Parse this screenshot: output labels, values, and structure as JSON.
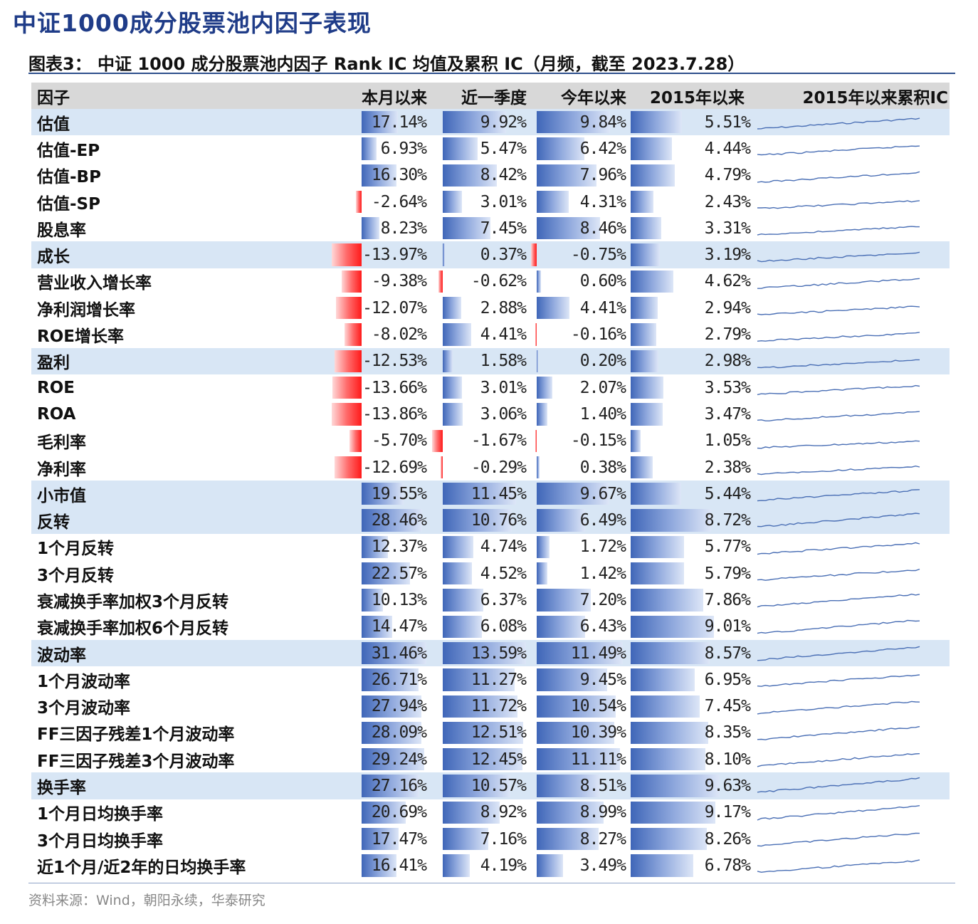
{
  "page_title": "中证1000成分股票池内因子表现",
  "figure_title": "图表3：  中证 1000 成分股票池内因子 Rank IC 均值及累积 IC（月频，截至 2023.7.28）",
  "source": "资料来源：Wind，朝阳永续，华泰研究",
  "colors": {
    "positive_bar": "#3f66b8",
    "negative_bar": "#ff1a1a",
    "group_row_bg": "#d8e6f5",
    "header_bg": "#d8d8d8",
    "sparkline": "#4a6fb5"
  },
  "headers": [
    "因子",
    "本月以来",
    "近一季度",
    "今年以来",
    "2015年以来",
    "2015年以来累积IC"
  ],
  "rows": [
    {
      "name": "估值",
      "group": true,
      "values": [
        "17.14%",
        "9.92%",
        "9.84%",
        "5.51%"
      ],
      "nums": [
        17.14,
        9.92,
        9.84,
        5.51
      ]
    },
    {
      "name": "估值-EP",
      "group": false,
      "values": [
        "6.93%",
        "5.47%",
        "6.42%",
        "4.44%"
      ],
      "nums": [
        6.93,
        5.47,
        6.42,
        4.44
      ]
    },
    {
      "name": "估值-BP",
      "group": false,
      "values": [
        "16.30%",
        "8.42%",
        "7.96%",
        "4.79%"
      ],
      "nums": [
        16.3,
        8.42,
        7.96,
        4.79
      ]
    },
    {
      "name": "估值-SP",
      "group": false,
      "values": [
        "-2.64%",
        "3.01%",
        "4.31%",
        "2.43%"
      ],
      "nums": [
        -2.64,
        3.01,
        4.31,
        2.43
      ]
    },
    {
      "name": "股息率",
      "group": false,
      "values": [
        "8.23%",
        "7.45%",
        "8.46%",
        "3.31%"
      ],
      "nums": [
        8.23,
        7.45,
        8.46,
        3.31
      ]
    },
    {
      "name": "成长",
      "group": true,
      "values": [
        "-13.97%",
        "0.37%",
        "-0.75%",
        "3.19%"
      ],
      "nums": [
        -13.97,
        0.37,
        -0.75,
        3.19
      ]
    },
    {
      "name": "营业收入增长率",
      "group": false,
      "values": [
        "-9.38%",
        "-0.62%",
        "0.60%",
        "4.62%"
      ],
      "nums": [
        -9.38,
        -0.62,
        0.6,
        4.62
      ]
    },
    {
      "name": "净利润增长率",
      "group": false,
      "values": [
        "-12.07%",
        "2.88%",
        "4.41%",
        "2.94%"
      ],
      "nums": [
        -12.07,
        2.88,
        4.41,
        2.94
      ]
    },
    {
      "name": "ROE增长率",
      "group": false,
      "values": [
        "-8.02%",
        "4.41%",
        "-0.16%",
        "2.79%"
      ],
      "nums": [
        -8.02,
        4.41,
        -0.16,
        2.79
      ]
    },
    {
      "name": "盈利",
      "group": true,
      "values": [
        "-12.53%",
        "1.58%",
        "0.20%",
        "2.98%"
      ],
      "nums": [
        -12.53,
        1.58,
        0.2,
        2.98
      ]
    },
    {
      "name": "ROE",
      "group": false,
      "values": [
        "-13.66%",
        "3.01%",
        "2.07%",
        "3.53%"
      ],
      "nums": [
        -13.66,
        3.01,
        2.07,
        3.53
      ]
    },
    {
      "name": "ROA",
      "group": false,
      "values": [
        "-13.86%",
        "3.06%",
        "1.40%",
        "3.47%"
      ],
      "nums": [
        -13.86,
        3.06,
        1.4,
        3.47
      ]
    },
    {
      "name": "毛利率",
      "group": false,
      "values": [
        "-5.70%",
        "-1.67%",
        "-0.15%",
        "1.05%"
      ],
      "nums": [
        -5.7,
        -1.67,
        -0.15,
        1.05
      ]
    },
    {
      "name": "净利率",
      "group": false,
      "values": [
        "-12.69%",
        "-0.29%",
        "0.38%",
        "2.38%"
      ],
      "nums": [
        -12.69,
        -0.29,
        0.38,
        2.38
      ]
    },
    {
      "name": "小市值",
      "group": true,
      "values": [
        "19.55%",
        "11.45%",
        "9.67%",
        "5.44%"
      ],
      "nums": [
        19.55,
        11.45,
        9.67,
        5.44
      ]
    },
    {
      "name": "反转",
      "group": true,
      "values": [
        "28.46%",
        "10.76%",
        "6.49%",
        "8.72%"
      ],
      "nums": [
        28.46,
        10.76,
        6.49,
        8.72
      ]
    },
    {
      "name": "1个月反转",
      "group": false,
      "values": [
        "12.37%",
        "4.74%",
        "1.72%",
        "5.77%"
      ],
      "nums": [
        12.37,
        4.74,
        1.72,
        5.77
      ]
    },
    {
      "name": "3个月反转",
      "group": false,
      "values": [
        "22.57%",
        "4.52%",
        "1.42%",
        "5.79%"
      ],
      "nums": [
        22.57,
        4.52,
        1.42,
        5.79
      ]
    },
    {
      "name": "衰减换手率加权3个月反转",
      "group": false,
      "values": [
        "10.13%",
        "6.37%",
        "7.20%",
        "7.86%"
      ],
      "nums": [
        10.13,
        6.37,
        7.2,
        7.86
      ]
    },
    {
      "name": "衰减换手率加权6个月反转",
      "group": false,
      "values": [
        "14.47%",
        "6.08%",
        "6.43%",
        "9.01%"
      ],
      "nums": [
        14.47,
        6.08,
        6.43,
        9.01
      ]
    },
    {
      "name": "波动率",
      "group": true,
      "values": [
        "31.46%",
        "13.59%",
        "11.49%",
        "8.57%"
      ],
      "nums": [
        31.46,
        13.59,
        11.49,
        8.57
      ]
    },
    {
      "name": "1个月波动率",
      "group": false,
      "values": [
        "26.71%",
        "11.27%",
        "9.45%",
        "6.95%"
      ],
      "nums": [
        26.71,
        11.27,
        9.45,
        6.95
      ]
    },
    {
      "name": "3个月波动率",
      "group": false,
      "values": [
        "27.94%",
        "11.72%",
        "10.54%",
        "7.45%"
      ],
      "nums": [
        27.94,
        11.72,
        10.54,
        7.45
      ]
    },
    {
      "name": "FF三因子残差1个月波动率",
      "group": false,
      "values": [
        "28.09%",
        "12.51%",
        "10.39%",
        "8.35%"
      ],
      "nums": [
        28.09,
        12.51,
        10.39,
        8.35
      ]
    },
    {
      "name": "FF三因子残差3个月波动率",
      "group": false,
      "values": [
        "29.24%",
        "12.45%",
        "11.11%",
        "8.10%"
      ],
      "nums": [
        29.24,
        12.45,
        11.11,
        8.1
      ]
    },
    {
      "name": "换手率",
      "group": true,
      "values": [
        "27.16%",
        "10.57%",
        "8.51%",
        "9.63%"
      ],
      "nums": [
        27.16,
        10.57,
        8.51,
        9.63
      ]
    },
    {
      "name": "1个月日均换手率",
      "group": false,
      "values": [
        "20.69%",
        "8.92%",
        "8.99%",
        "9.17%"
      ],
      "nums": [
        20.69,
        8.92,
        8.99,
        9.17
      ]
    },
    {
      "name": "3个月日均换手率",
      "group": false,
      "values": [
        "17.47%",
        "7.16%",
        "8.27%",
        "8.26%"
      ],
      "nums": [
        17.47,
        7.16,
        8.27,
        8.26
      ]
    },
    {
      "name": "近1个月/近2年的日均换手率",
      "group": false,
      "values": [
        "16.41%",
        "4.19%",
        "3.49%",
        "6.78%"
      ],
      "nums": [
        16.41,
        4.19,
        3.49,
        6.78
      ]
    }
  ]
}
